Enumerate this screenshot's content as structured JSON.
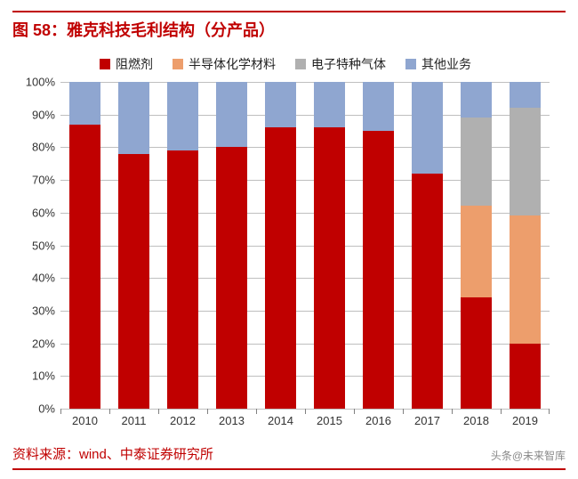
{
  "title": "图 58：雅克科技毛利结构（分产品）",
  "title_fontsize": 18,
  "source_label": "资料来源：wind、中泰证券研究所",
  "watermark": "头条@未来智库",
  "chart": {
    "type": "stacked-bar-100",
    "categories": [
      "2010",
      "2011",
      "2012",
      "2013",
      "2014",
      "2015",
      "2016",
      "2017",
      "2018",
      "2019"
    ],
    "series": [
      {
        "name": "阻燃剂",
        "color": "#c00000",
        "values": [
          87,
          78,
          79,
          80,
          86,
          86,
          85,
          72,
          34,
          20
        ]
      },
      {
        "name": "半导体化学材料",
        "color": "#ed9e6c",
        "values": [
          0,
          0,
          0,
          0,
          0,
          0,
          0,
          0,
          28,
          39
        ]
      },
      {
        "name": "电子特种气体",
        "color": "#b0b0b0",
        "values": [
          0,
          0,
          0,
          0,
          0,
          0,
          0,
          0,
          27,
          33
        ]
      },
      {
        "name": "其他业务",
        "color": "#8fa6d0",
        "values": [
          13,
          22,
          21,
          20,
          14,
          14,
          15,
          28,
          11,
          8
        ]
      }
    ],
    "ylim": [
      0,
      100
    ],
    "ytick_step": 10,
    "ylabel_suffix": "%",
    "grid_color": "#bfbfbf",
    "background_color": "#ffffff",
    "bar_width_ratio": 0.62,
    "axis_fontsize": 13,
    "legend_fontsize": 14
  }
}
